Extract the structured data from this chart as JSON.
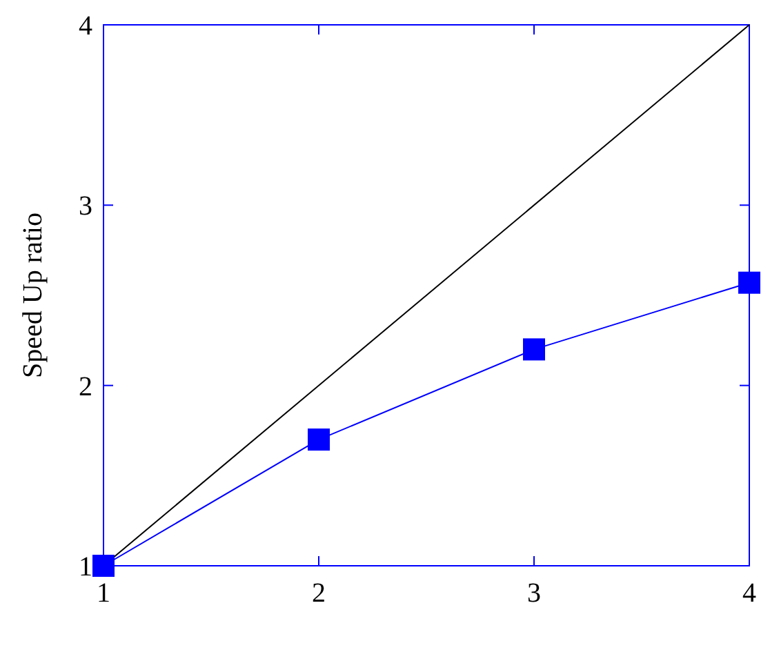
{
  "chart_data": {
    "type": "line",
    "ylabel": "Speed Up ratio",
    "xlim": [
      1,
      4
    ],
    "xticks": [
      1,
      2,
      3,
      4
    ],
    "ylim": [
      1,
      4
    ],
    "yticks": [
      1,
      2,
      3,
      4
    ],
    "grid": false,
    "series": [
      {
        "color": "#000000",
        "x": [
          1,
          4
        ],
        "values": [
          1,
          4
        ],
        "marker": "none"
      },
      {
        "color": "#0000ff",
        "x": [
          1,
          2,
          3,
          4
        ],
        "values": [
          1,
          1.7,
          2.2,
          2.57
        ],
        "marker": "square"
      }
    ]
  }
}
